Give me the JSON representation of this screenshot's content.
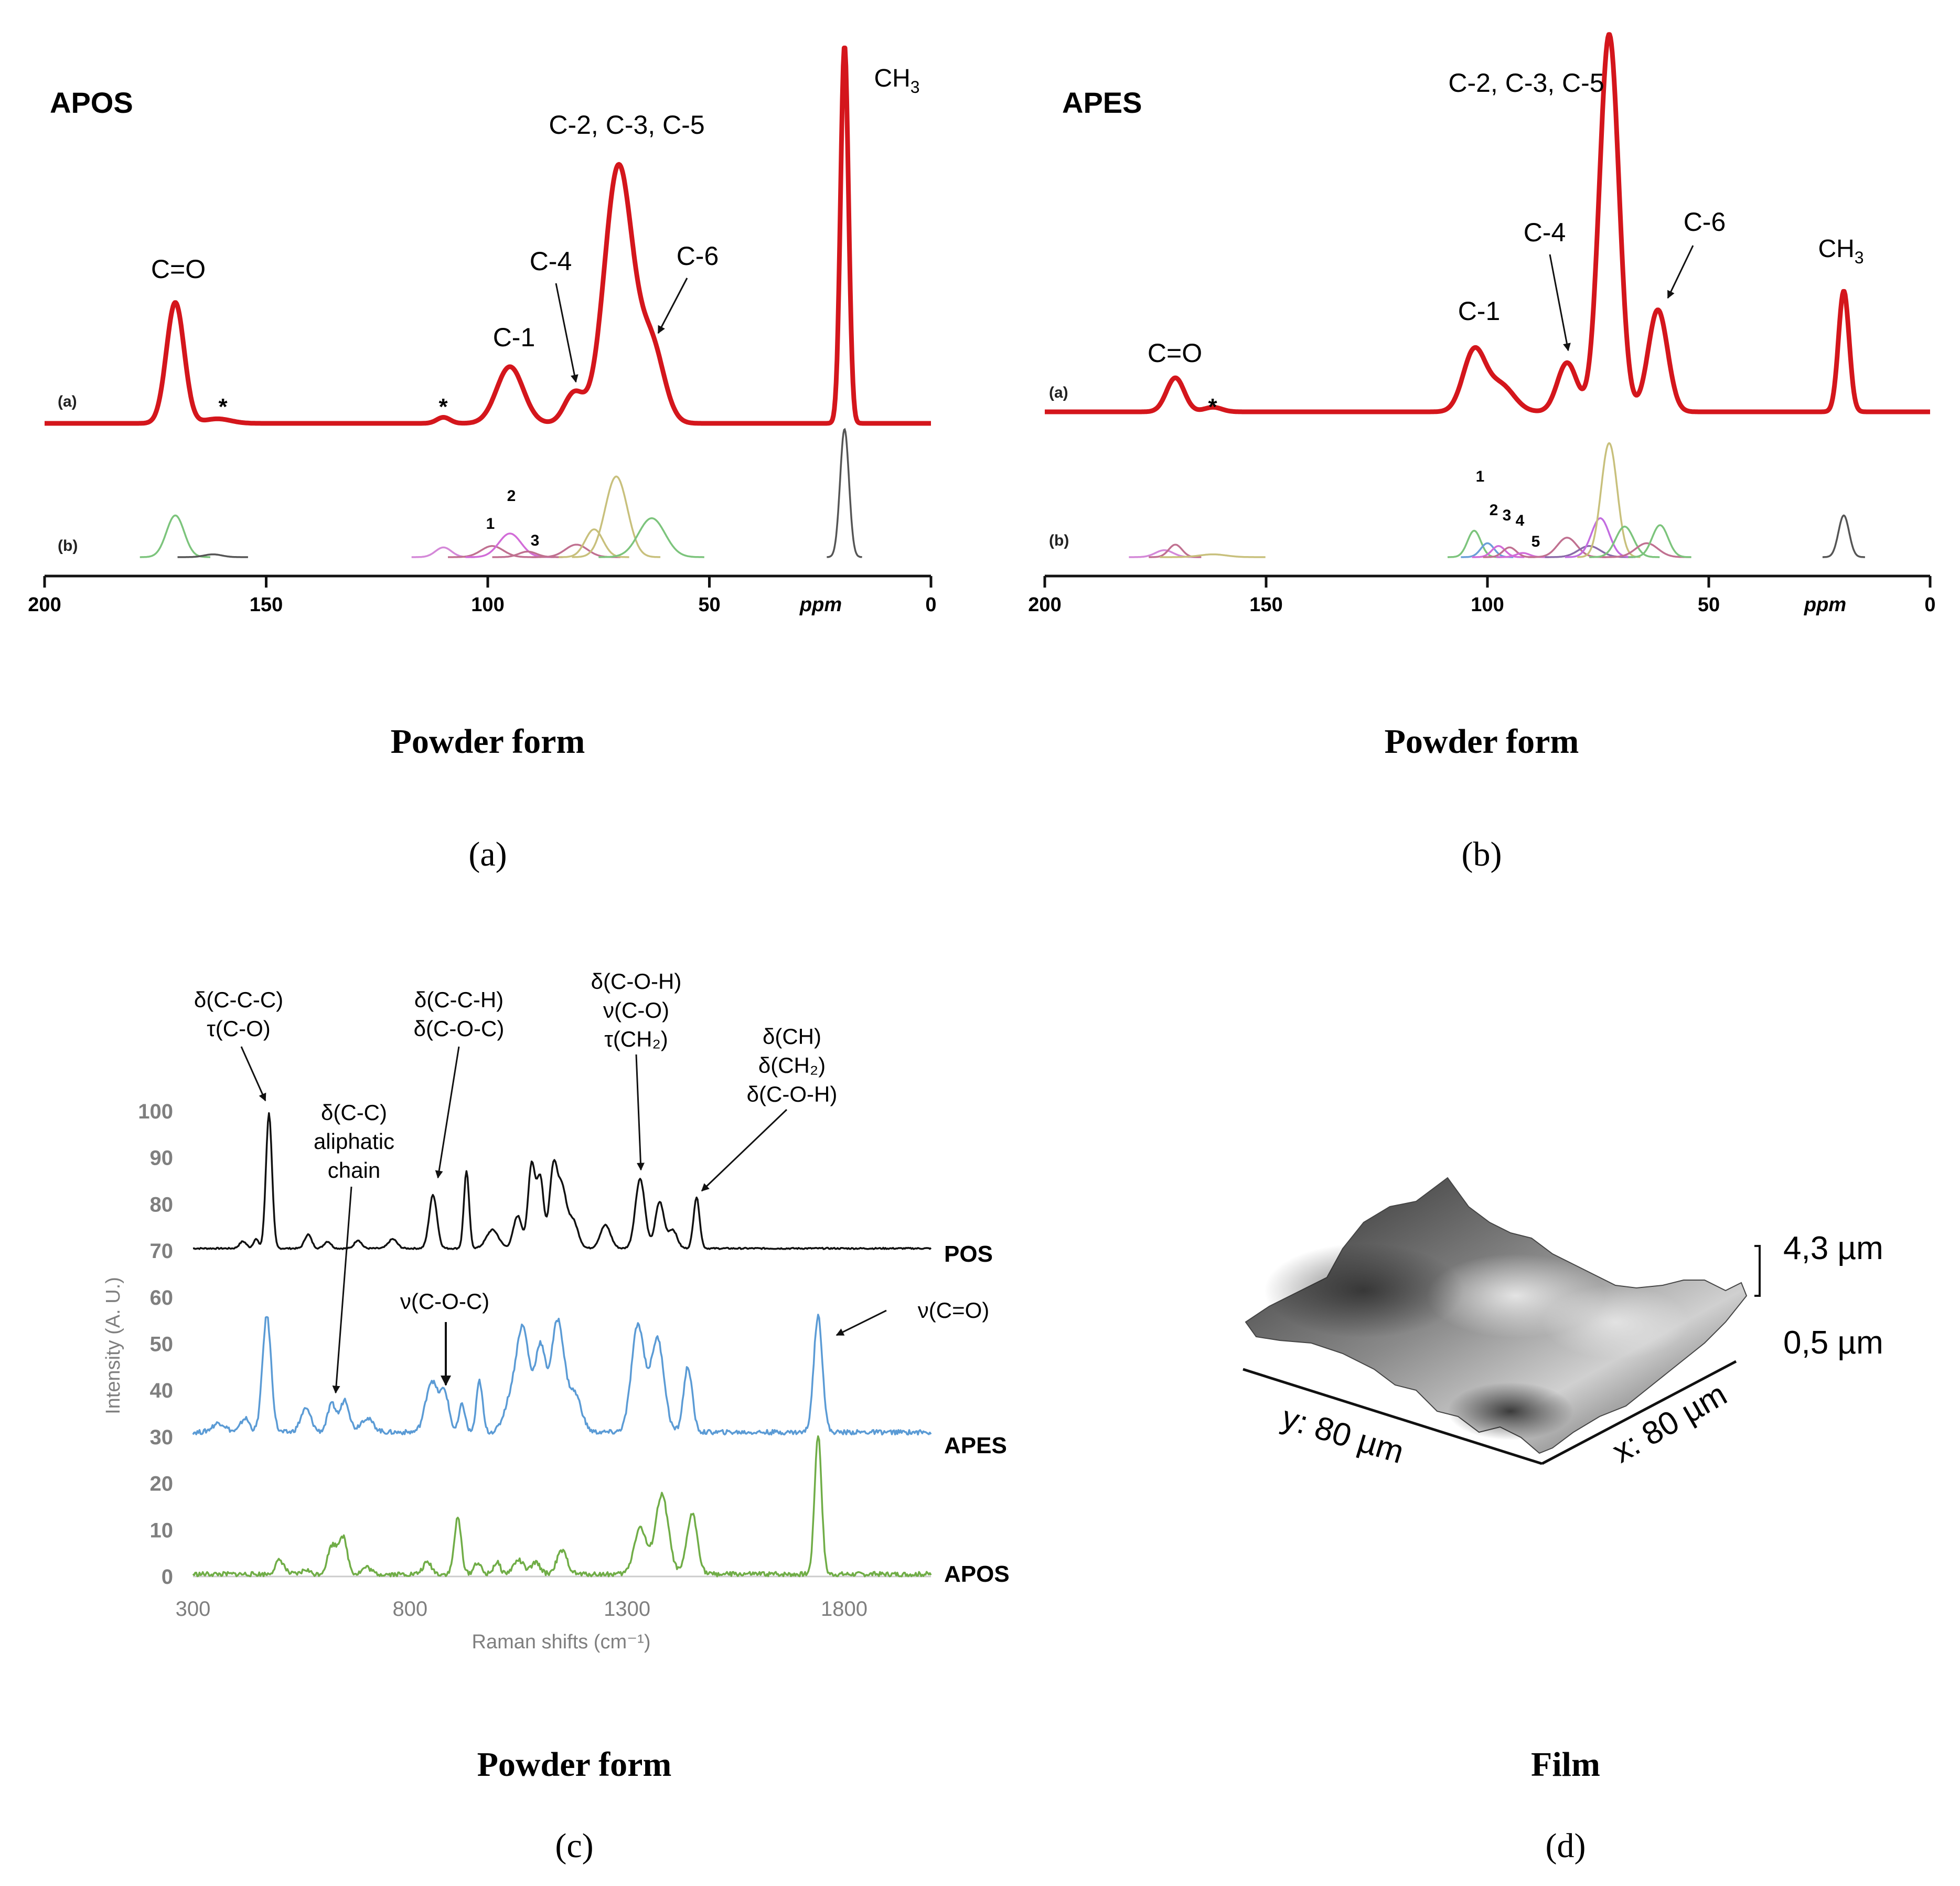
{
  "chart_data": [
    {
      "panel": "(a)",
      "type": "line",
      "title": "APOS",
      "caption": "Powder form",
      "panel_label": "(a)",
      "trace_labels": [
        "(a)",
        "(b)"
      ],
      "xlabel": "ppm",
      "xlim": [
        200,
        0
      ],
      "x_ticks": [
        "200",
        "150",
        "100",
        "50",
        "0"
      ],
      "x_tick_values": [
        200,
        150,
        100,
        50,
        0
      ],
      "colors": {
        "experimental": "#d4161c"
      },
      "peaks": [
        {
          "label": "C=O",
          "ppm": 170.5,
          "height": 0.32,
          "width": 2.0
        },
        {
          "label": "*",
          "ppm": 161,
          "height": 0.012,
          "width": 3.0
        },
        {
          "label": "*",
          "ppm": 110,
          "height": 0.016,
          "width": 1.5
        },
        {
          "label": "C-1",
          "ppm": 95,
          "height": 0.15,
          "width": 3.0
        },
        {
          "label": "C-4",
          "ppm": 80.5,
          "height": 0.08,
          "width": 2.2
        },
        {
          "label": "C-2, C-3, C-5",
          "ppm": 70.5,
          "height": 0.68,
          "width": 3.2
        },
        {
          "label": "C-6",
          "ppm": 63,
          "height": 0.2,
          "width": 2.8
        },
        {
          "label": "CH3",
          "ppm": 19.5,
          "height": 1.0,
          "width": 0.9
        }
      ],
      "deconvolution": [
        {
          "label": "",
          "ppm": 170.5,
          "height": 0.3,
          "width": 2.0,
          "color": "#7cc47c"
        },
        {
          "label": "",
          "ppm": 162,
          "height": 0.02,
          "width": 2.0,
          "color": "#555555"
        },
        {
          "label": "",
          "ppm": 110,
          "height": 0.07,
          "width": 1.8,
          "color": "#d488d8"
        },
        {
          "label": "1",
          "ppm": 99,
          "height": 0.08,
          "width": 2.5,
          "color": "#c07090"
        },
        {
          "label": "2",
          "ppm": 95,
          "height": 0.17,
          "width": 2.5,
          "color": "#d26cd8"
        },
        {
          "label": "3",
          "ppm": 91,
          "height": 0.04,
          "width": 2.0,
          "color": "#c07090"
        },
        {
          "label": "",
          "ppm": 80,
          "height": 0.09,
          "width": 2.5,
          "color": "#c07090"
        },
        {
          "label": "",
          "ppm": 76,
          "height": 0.2,
          "width": 2.0,
          "color": "#c8c07c"
        },
        {
          "label": "",
          "ppm": 71,
          "height": 0.58,
          "width": 2.5,
          "color": "#c8c07c"
        },
        {
          "label": "",
          "ppm": 63,
          "height": 0.28,
          "width": 3.0,
          "color": "#7cc47c"
        },
        {
          "label": "",
          "ppm": 19.5,
          "height": 0.92,
          "width": 1.0,
          "color": "#555555"
        }
      ]
    },
    {
      "panel": "(b)",
      "type": "line",
      "title": "APES",
      "caption": "Powder form",
      "panel_label": "(b)",
      "trace_labels": [
        "(a)",
        "(b)"
      ],
      "xlabel": "ppm",
      "xlim": [
        200,
        0
      ],
      "x_ticks": [
        "200",
        "150",
        "100",
        "50",
        "0"
      ],
      "x_tick_values": [
        200,
        150,
        100,
        50,
        0
      ],
      "colors": {
        "experimental": "#d4161c"
      },
      "peaks": [
        {
          "label": "C=O",
          "ppm": 170.5,
          "height": 0.09,
          "width": 2.0
        },
        {
          "label": "*",
          "ppm": 162,
          "height": 0.012,
          "width": 2.0
        },
        {
          "label": "C-1",
          "ppm": 103,
          "height": 0.16,
          "width": 2.5
        },
        {
          "label": "",
          "ppm": 97,
          "height": 0.07,
          "width": 3.0
        },
        {
          "label": "C-4",
          "ppm": 82,
          "height": 0.13,
          "width": 2.2
        },
        {
          "label": "C-2, C-3, C-5",
          "ppm": 72.5,
          "height": 1.0,
          "width": 2.2
        },
        {
          "label": "C-6",
          "ppm": 61.5,
          "height": 0.27,
          "width": 2.2
        },
        {
          "label": "CH3",
          "ppm": 19.5,
          "height": 0.32,
          "width": 1.2
        }
      ],
      "deconvolution": [
        {
          "label": "",
          "ppm": 173,
          "height": 0.05,
          "width": 2.0,
          "color": "#d488d8"
        },
        {
          "label": "",
          "ppm": 170.5,
          "height": 0.09,
          "width": 1.5,
          "color": "#c07090"
        },
        {
          "label": "",
          "ppm": 162,
          "height": 0.02,
          "width": 3.0,
          "color": "#c8c07c"
        },
        {
          "label": "1",
          "ppm": 103,
          "height": 0.19,
          "width": 1.5,
          "color": "#7cc47c"
        },
        {
          "label": "2",
          "ppm": 100,
          "height": 0.1,
          "width": 1.5,
          "color": "#6a9fd8"
        },
        {
          "label": "3",
          "ppm": 97.5,
          "height": 0.08,
          "width": 1.5,
          "color": "#d26cd8"
        },
        {
          "label": "4",
          "ppm": 95,
          "height": 0.07,
          "width": 1.5,
          "color": "#c07090"
        },
        {
          "label": "5",
          "ppm": 92,
          "height": 0.03,
          "width": 1.5,
          "color": "#d26cd8"
        },
        {
          "label": "",
          "ppm": 82,
          "height": 0.14,
          "width": 2.2,
          "color": "#c07090"
        },
        {
          "label": "",
          "ppm": 77,
          "height": 0.08,
          "width": 2.5,
          "color": "#8a6aa8"
        },
        {
          "label": "",
          "ppm": 74.5,
          "height": 0.28,
          "width": 2.0,
          "color": "#c26ce0"
        },
        {
          "label": "",
          "ppm": 72.5,
          "height": 0.82,
          "width": 1.8,
          "color": "#c8c07c"
        },
        {
          "label": "",
          "ppm": 69,
          "height": 0.22,
          "width": 2.0,
          "color": "#7cc47c"
        },
        {
          "label": "",
          "ppm": 64,
          "height": 0.1,
          "width": 2.5,
          "color": "#c07090"
        },
        {
          "label": "",
          "ppm": 61,
          "height": 0.23,
          "width": 1.8,
          "color": "#7cc47c"
        },
        {
          "label": "",
          "ppm": 19.5,
          "height": 0.3,
          "width": 1.2,
          "color": "#555555"
        }
      ]
    },
    {
      "panel": "(c)",
      "type": "line",
      "caption": "Powder form",
      "panel_label": "(c)",
      "xlabel": "Raman shifts (cm⁻¹)",
      "ylabel": "Intensity (A. U.)",
      "xlim": [
        300,
        2000
      ],
      "ylim": [
        0,
        100
      ],
      "x_ticks": [
        "300",
        "800",
        "1300",
        "1800"
      ],
      "x_tick_values": [
        300,
        800,
        1300,
        1800
      ],
      "y_ticks": [
        "0",
        "10",
        "20",
        "30",
        "40",
        "50",
        "60",
        "70",
        "80",
        "90",
        "100"
      ],
      "y_tick_values": [
        0,
        10,
        20,
        30,
        40,
        50,
        60,
        70,
        80,
        90,
        100
      ],
      "series": [
        {
          "name": "POS",
          "color": "#111111",
          "baseline": 70.5,
          "peaks": [
            [
              475,
              29,
              7
            ],
            [
              415,
              1.5,
              8
            ],
            [
              445,
              2,
              6
            ],
            [
              565,
              3,
              8
            ],
            [
              610,
              1.5,
              8
            ],
            [
              680,
              1.8,
              8
            ],
            [
              760,
              2,
              10
            ],
            [
              853,
              11.5,
              9
            ],
            [
              930,
              16.5,
              6
            ],
            [
              990,
              4,
              14
            ],
            [
              1048,
              7,
              10
            ],
            [
              1080,
              18,
              8
            ],
            [
              1100,
              15,
              8
            ],
            [
              1130,
              17,
              9
            ],
            [
              1150,
              12,
              10
            ],
            [
              1175,
              6,
              12
            ],
            [
              1250,
              5,
              12
            ],
            [
              1330,
              15,
              11
            ],
            [
              1375,
              10,
              10
            ],
            [
              1405,
              4,
              10
            ],
            [
              1460,
              11,
              7
            ]
          ]
        },
        {
          "name": "APES",
          "color": "#5b9bd5",
          "baseline": 31,
          "peaks": [
            [
              360,
              2,
              15
            ],
            [
              470,
              25,
              10
            ],
            [
              420,
              3,
              10
            ],
            [
              560,
              5,
              12
            ],
            [
              620,
              6,
              10
            ],
            [
              650,
              7,
              10
            ],
            [
              700,
              3,
              15
            ],
            [
              850,
              11,
              14
            ],
            [
              880,
              8,
              10
            ],
            [
              920,
              6,
              7
            ],
            [
              960,
              11,
              7
            ],
            [
              1030,
              6,
              15
            ],
            [
              1060,
              22,
              15
            ],
            [
              1100,
              18,
              12
            ],
            [
              1140,
              24,
              15
            ],
            [
              1180,
              8,
              15
            ],
            [
              1325,
              23,
              15
            ],
            [
              1370,
              20,
              15
            ],
            [
              1440,
              14,
              10
            ],
            [
              1740,
              25,
              10
            ]
          ]
        },
        {
          "name": "APOS",
          "color": "#70ad47",
          "baseline": 0.5,
          "peaks": [
            [
              500,
              3,
              10
            ],
            [
              560,
              1,
              8
            ],
            [
              620,
              6,
              10
            ],
            [
              645,
              8,
              10
            ],
            [
              700,
              1.5,
              10
            ],
            [
              840,
              2.5,
              10
            ],
            [
              910,
              12,
              8
            ],
            [
              955,
              2.5,
              8
            ],
            [
              1000,
              2.5,
              8
            ],
            [
              1050,
              3,
              12
            ],
            [
              1090,
              2.5,
              10
            ],
            [
              1150,
              5,
              12
            ],
            [
              1330,
              10,
              14
            ],
            [
              1380,
              17,
              15
            ],
            [
              1450,
              13,
              12
            ],
            [
              1740,
              30,
              8
            ]
          ]
        }
      ],
      "annotations": [
        {
          "lines": [
            "δ(C-C-C)",
            "τ(C-O)"
          ]
        },
        {
          "lines": [
            "δ(C-C)",
            "aliphatic",
            "chain"
          ]
        },
        {
          "lines": [
            "δ(C-C-H)",
            "δ(C-O-C)"
          ]
        },
        {
          "lines": [
            "δ(C-O-H)",
            "ν(C-O)",
            "τ(CH₂)"
          ]
        },
        {
          "lines": [
            "δ(CH)",
            "δ(CH₂)",
            "δ(C-O-H)"
          ]
        },
        {
          "lines": [
            "ν(C-O-C)"
          ]
        },
        {
          "lines": [
            "ν(C=O)"
          ]
        }
      ]
    },
    {
      "panel": "(d)",
      "type": "surface",
      "caption": "Film",
      "panel_label": "(d)",
      "x_label": "x: 80 µm",
      "y_label": "y: 80 µm",
      "z_max": "4,3 µm",
      "z_min": "0,5 µm"
    }
  ]
}
